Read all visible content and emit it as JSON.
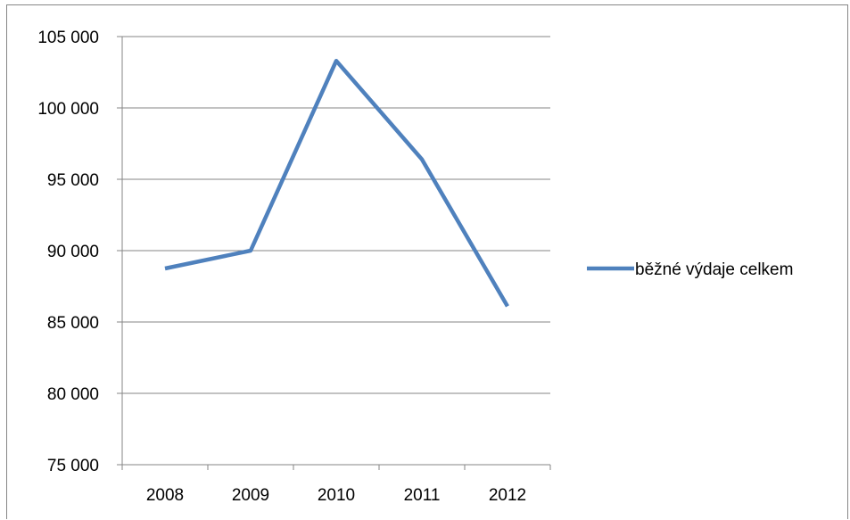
{
  "chart_data": {
    "type": "line",
    "categories": [
      "2008",
      "2009",
      "2010",
      "2011",
      "2012"
    ],
    "series": [
      {
        "name": "běžné výdaje celkem",
        "values": [
          88750,
          90000,
          103300,
          96400,
          86100
        ],
        "color": "#4F81BD"
      }
    ],
    "ylim": [
      75000,
      105000
    ],
    "yticks": [
      75000,
      80000,
      85000,
      90000,
      95000,
      100000,
      105000
    ],
    "ytick_labels": [
      "75 000",
      "80 000",
      "85 000",
      "90 000",
      "95 000",
      "100 000",
      "105 000"
    ],
    "gridlines": true,
    "legend_position": "right",
    "title": "",
    "xlabel": "",
    "ylabel": ""
  },
  "colors": {
    "grid": "#868686",
    "axis": "#868686",
    "series": "#4F81BD"
  }
}
